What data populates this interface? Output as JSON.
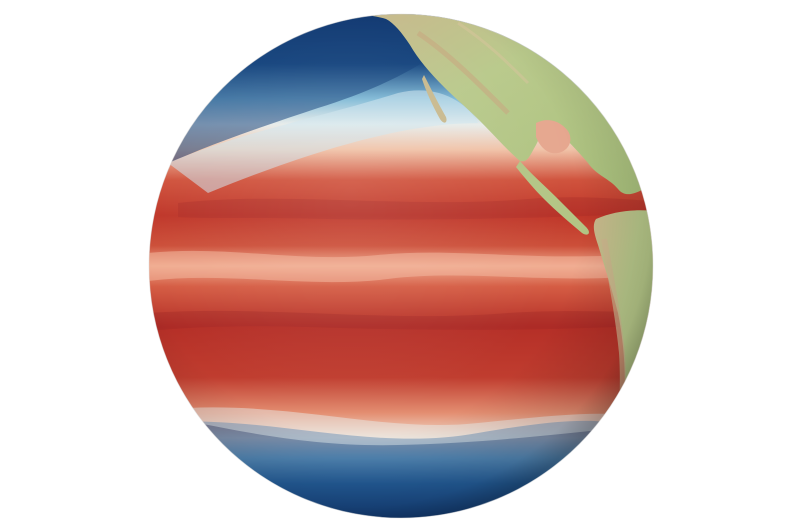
{
  "image": {
    "subject": "globe",
    "palette": {
      "background": "#ffffff",
      "deep_blue": "#0b2a63",
      "mid_blue": "#2c6ea6",
      "light_blue": "#bfe0ee",
      "pale": "#f3ddc9",
      "salmon": "#e58f75",
      "red": "#c43d2e",
      "dark_red": "#8e1f22",
      "land_green": "#b8c98a",
      "land_tan": "#cdb48d"
    }
  }
}
